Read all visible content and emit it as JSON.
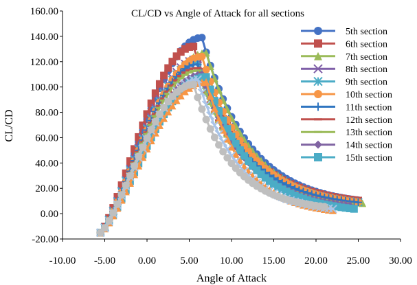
{
  "chart_data": {
    "type": "scatter",
    "title": "CL/CD vs Angle of Attack for all sections",
    "xlabel": "Angle of Attack",
    "ylabel": "CL/CD",
    "xlim": [
      -10,
      30
    ],
    "ylim": [
      -20,
      160
    ],
    "xticks": [
      "-10.00",
      "-5.00",
      "0.00",
      "5.00",
      "10.00",
      "15.00",
      "20.00",
      "25.00",
      "30.00"
    ],
    "yticks": [
      "-20.00",
      "0.00",
      "20.00",
      "40.00",
      "60.00",
      "80.00",
      "100.00",
      "120.00",
      "140.00",
      "160.00"
    ],
    "grid": false,
    "legend_position": "top-right",
    "series": [
      {
        "name": "5th section",
        "color": "#4472c4",
        "marker": "circle",
        "peak_x": 6.5,
        "peak_y": 139,
        "end_x": 25,
        "end_y": 6
      },
      {
        "name": "6th section",
        "color": "#c0504d",
        "marker": "square",
        "peak_x": 5.5,
        "peak_y": 132,
        "end_x": 25,
        "end_y": 6
      },
      {
        "name": "7th section",
        "color": "#9bbb59",
        "marker": "triangle",
        "peak_x": 7,
        "peak_y": 127,
        "end_x": 25.5,
        "end_y": 4
      },
      {
        "name": "8th section",
        "color": "#7f5fa8",
        "marker": "x",
        "peak_x": 6,
        "peak_y": 122,
        "end_x": 25,
        "end_y": 5
      },
      {
        "name": "9th section",
        "color": "#4bacc6",
        "marker": "asterisk",
        "peak_x": 6,
        "peak_y": 120,
        "end_x": 25,
        "end_y": 5
      },
      {
        "name": "10th section",
        "color": "#f79646",
        "marker": "circle",
        "peak_x": 6.5,
        "peak_y": 124,
        "end_x": 25,
        "end_y": 5
      },
      {
        "name": "11th section",
        "color": "#2f75c0",
        "marker": "plus",
        "peak_x": 6,
        "peak_y": 118,
        "end_x": 25,
        "end_y": 5
      },
      {
        "name": "12th section",
        "color": "#c0504d",
        "marker": "dash",
        "peak_x": 6,
        "peak_y": 115,
        "end_x": 24,
        "end_y": 4
      },
      {
        "name": "13th section",
        "color": "#9bbb59",
        "marker": "dash",
        "peak_x": 6,
        "peak_y": 113,
        "end_x": 24,
        "end_y": 4
      },
      {
        "name": "14th section",
        "color": "#8064a2",
        "marker": "diamond",
        "peak_x": 6.5,
        "peak_y": 110,
        "end_x": 24,
        "end_y": 3
      },
      {
        "name": "15th section",
        "color": "#4bacc6",
        "marker": "square",
        "peak_x": 7,
        "peak_y": 108,
        "end_x": 24.5,
        "end_y": 0
      },
      {
        "name": "",
        "color": "#f79646",
        "marker": "triangle",
        "peak_x": 7,
        "peak_y": 104,
        "end_x": 22,
        "end_y": -1
      },
      {
        "name": "",
        "color": "#a9c4e8",
        "marker": "x",
        "peak_x": 6,
        "peak_y": 106,
        "end_x": 22,
        "end_y": 0
      },
      {
        "name": "",
        "color": "#bfbfbf",
        "marker": "circle",
        "peak_x": 5.5,
        "peak_y": 102,
        "end_x": 21,
        "end_y": 2
      }
    ]
  }
}
